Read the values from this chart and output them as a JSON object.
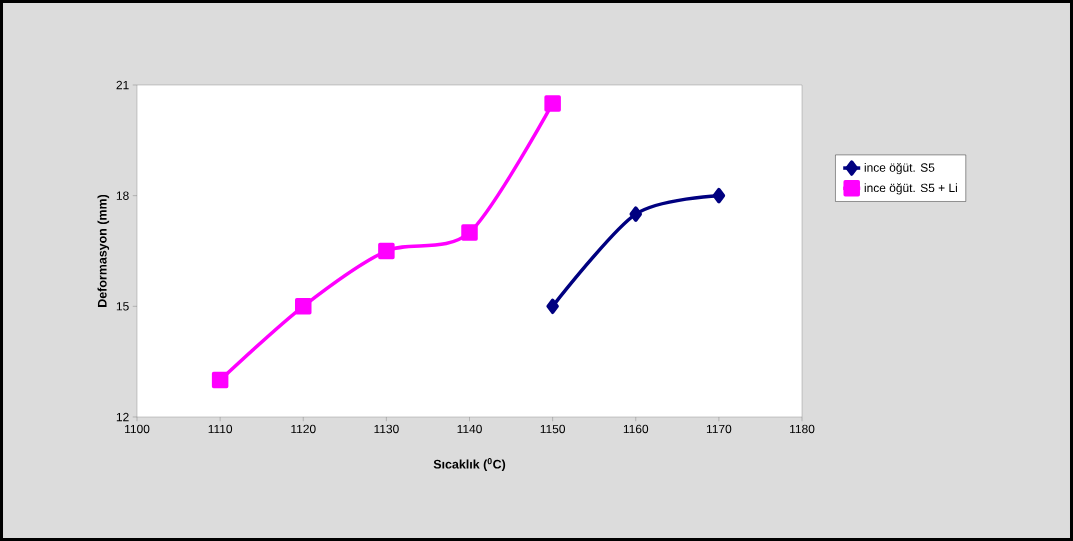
{
  "chart_data": {
    "type": "line",
    "xlabel": "Sıcaklık ($^{0}$C)",
    "ylabel": "Deformasyon (mm)",
    "xlim": [
      1100,
      1180
    ],
    "xticks": [
      1100,
      1110,
      1120,
      1130,
      1140,
      1150,
      1160,
      1170,
      1180
    ],
    "ylim": [
      12,
      21
    ],
    "yticks": [
      12,
      15,
      18,
      21
    ],
    "grid": false,
    "legend": "right",
    "series": [
      {
        "name": "ince öğüt. S5",
        "color": "#000080",
        "marker": "diamond",
        "x": [
          1150,
          1160,
          1170
        ],
        "values": [
          15,
          17.5,
          18
        ]
      },
      {
        "name": "ince öğüt. S5 + Li",
        "color": "#ff00ff",
        "marker": "square",
        "x": [
          1110,
          1120,
          1130,
          1140,
          1150
        ],
        "values": [
          13,
          15,
          16.5,
          17,
          20.5
        ]
      }
    ]
  }
}
